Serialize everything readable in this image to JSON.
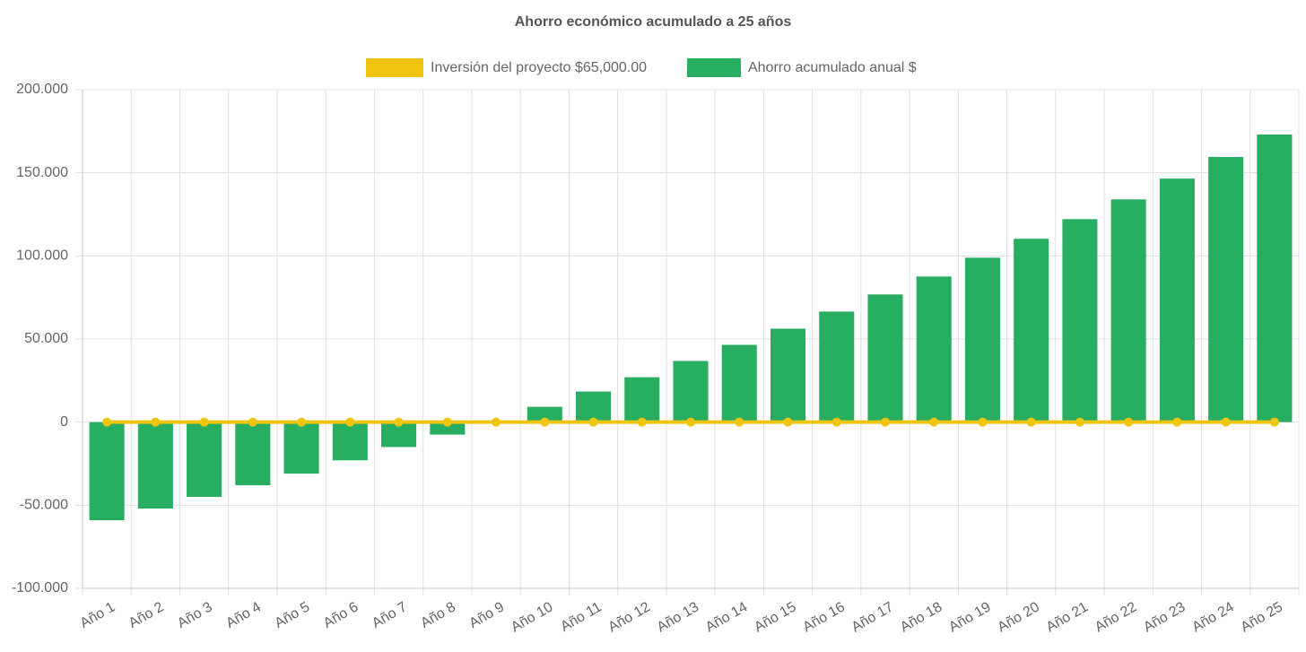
{
  "chart_data": {
    "type": "bar",
    "title": "Ahorro económico acumulado a 25 años",
    "categories": [
      "Año 1",
      "Año 2",
      "Año 3",
      "Año 4",
      "Año 5",
      "Año 6",
      "Año 7",
      "Año 8",
      "Año 9",
      "Año 10",
      "Año 11",
      "Año 12",
      "Año 13",
      "Año 14",
      "Año 15",
      "Año 16",
      "Año 17",
      "Año 18",
      "Año 19",
      "Año 20",
      "Año 21",
      "Año 22",
      "Año 23",
      "Año 24",
      "Año 25"
    ],
    "series": [
      {
        "name": "Inversión del proyecto $65,000.00",
        "type": "line",
        "color": "#f1c40f",
        "values": [
          0,
          0,
          0,
          0,
          0,
          0,
          0,
          0,
          0,
          0,
          0,
          0,
          0,
          0,
          0,
          0,
          0,
          0,
          0,
          0,
          0,
          0,
          0,
          0,
          0
        ]
      },
      {
        "name": "Ahorro acumulado anual $",
        "type": "bar",
        "color": "#27ae60",
        "values": [
          -59000,
          -52000,
          -45000,
          -38000,
          -31000,
          -23000,
          -15000,
          -7500,
          500,
          9200,
          18400,
          27000,
          36800,
          46500,
          56200,
          66500,
          76800,
          87600,
          98900,
          110300,
          122100,
          134000,
          146500,
          159500,
          173000
        ]
      }
    ],
    "ylim": [
      -100000,
      200000
    ],
    "yticks": [
      {
        "value": -100000,
        "label": "-100.000"
      },
      {
        "value": -50000,
        "label": "-50.000"
      },
      0,
      {
        "value": 50000,
        "label": "50.000"
      },
      {
        "value": 100000,
        "label": "100.000"
      },
      {
        "value": 150000,
        "label": "150.000"
      },
      {
        "value": 200000,
        "label": "200.000"
      }
    ],
    "grid": true
  }
}
